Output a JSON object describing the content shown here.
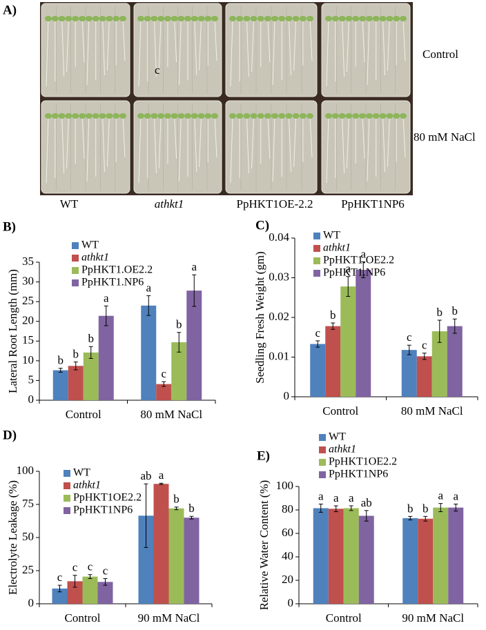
{
  "photo_panel": {
    "label": "A)",
    "rows": [
      "Control",
      "80 mM NaCl"
    ],
    "columns": [
      "WT",
      "athkt1",
      "PpHKT1OE-2.2",
      "PpHKT1NP6"
    ],
    "annotation": "c"
  },
  "chart_data": [
    {
      "type": "bar",
      "panel": "B)",
      "y_label": "Lateral Root Length (mm)",
      "categories": [
        "Control",
        "80 mM NaCl"
      ],
      "ylim": [
        0,
        35
      ],
      "yticks": [
        0,
        5,
        10,
        15,
        20,
        25,
        30,
        35
      ],
      "series": [
        {
          "name": "WT",
          "color": "#4f81bd",
          "values": [
            7.6,
            24
          ],
          "errors": [
            0.5,
            2.5
          ],
          "letters": [
            "b",
            "a"
          ]
        },
        {
          "name": "athkt1",
          "color": "#c0504d",
          "values": [
            8.7,
            4.1
          ],
          "errors": [
            1,
            0.6
          ],
          "letters": [
            "b",
            "c"
          ]
        },
        {
          "name": "PpHKT1.OE2.2",
          "color": "#9bbb59",
          "values": [
            12.1,
            14.7
          ],
          "errors": [
            1.5,
            2.5
          ],
          "letters": [
            "b",
            "b"
          ]
        },
        {
          "name": "PpHKT1.NP6",
          "color": "#8064a2",
          "values": [
            21.4,
            27.8
          ],
          "errors": [
            2.5,
            4
          ],
          "letters": [
            "a",
            "a"
          ]
        }
      ]
    },
    {
      "type": "bar",
      "panel": "C)",
      "y_label": "Seedling Fresh Weight (gm)",
      "categories": [
        "Control",
        "80 mM NaCl"
      ],
      "ylim": [
        0,
        0.04
      ],
      "yticks": [
        0,
        0.01,
        0.02,
        0.03,
        0.04
      ],
      "series": [
        {
          "name": "WT",
          "color": "#4f81bd",
          "values": [
            0.0133,
            0.0118
          ],
          "errors": [
            0.0008,
            0.0012
          ],
          "letters": [
            "c",
            "c"
          ]
        },
        {
          "name": "athkt1",
          "color": "#c0504d",
          "values": [
            0.0178,
            0.0102
          ],
          "errors": [
            0.0008,
            0.0008
          ],
          "letters": [
            "b",
            "c"
          ]
        },
        {
          "name": "PpHKT1.OE2.2",
          "color": "#9bbb59",
          "values": [
            0.0278,
            0.0165
          ],
          "errors": [
            0.0025,
            0.0028
          ],
          "letters": [
            "a",
            "b"
          ]
        },
        {
          "name": "PpHKT1.NP6",
          "color": "#8064a2",
          "values": [
            0.032,
            0.0178
          ],
          "errors": [
            0.002,
            0.0018
          ],
          "letters": [
            "a",
            "b"
          ]
        }
      ]
    },
    {
      "type": "bar",
      "panel": "D)",
      "y_label": "Electrolyte Leakage (%)",
      "categories": [
        "Control",
        "90 mM NaCl"
      ],
      "ylim": [
        0,
        100
      ],
      "yticks": [
        0,
        25,
        50,
        75,
        100
      ],
      "series": [
        {
          "name": "WT",
          "color": "#4f81bd",
          "values": [
            11.5,
            66.5
          ],
          "errors": [
            2.5,
            24
          ],
          "letters": [
            "c",
            "ab"
          ]
        },
        {
          "name": "athkt1",
          "color": "#c0504d",
          "values": [
            17,
            90.5
          ],
          "errors": [
            4.5,
            0.5
          ],
          "letters": [
            "c",
            "a"
          ]
        },
        {
          "name": "PpHKT1OE2.2",
          "color": "#9bbb59",
          "values": [
            20.5,
            72
          ],
          "errors": [
            1.5,
            1
          ],
          "letters": [
            "c",
            "b"
          ]
        },
        {
          "name": "PpHKT1NP6",
          "color": "#8064a2",
          "values": [
            16.5,
            65
          ],
          "errors": [
            2.5,
            1
          ],
          "letters": [
            "c",
            "b"
          ]
        }
      ]
    },
    {
      "type": "bar",
      "panel": "E)",
      "y_label": "Relative Water Content (%)",
      "categories": [
        "Control",
        "90 mM NaCl"
      ],
      "ylim": [
        0,
        100
      ],
      "yticks": [
        0,
        20,
        40,
        60,
        80,
        100
      ],
      "series": [
        {
          "name": "WT",
          "color": "#4f81bd",
          "values": [
            81.5,
            73
          ],
          "errors": [
            3.5,
            1.5
          ],
          "letters": [
            "a",
            "b"
          ]
        },
        {
          "name": "athkt1",
          "color": "#c0504d",
          "values": [
            81,
            72.5
          ],
          "errors": [
            2.5,
            2
          ],
          "letters": [
            "a",
            "b"
          ]
        },
        {
          "name": "PpHKT1OE2.2",
          "color": "#9bbb59",
          "values": [
            81.5,
            82
          ],
          "errors": [
            2,
            3.5
          ],
          "letters": [
            "a",
            "a"
          ]
        },
        {
          "name": "PpHKT1NP6",
          "color": "#8064a2",
          "values": [
            75,
            82
          ],
          "errors": [
            4.5,
            3
          ],
          "letters": [
            "ab",
            "a"
          ]
        }
      ]
    }
  ]
}
